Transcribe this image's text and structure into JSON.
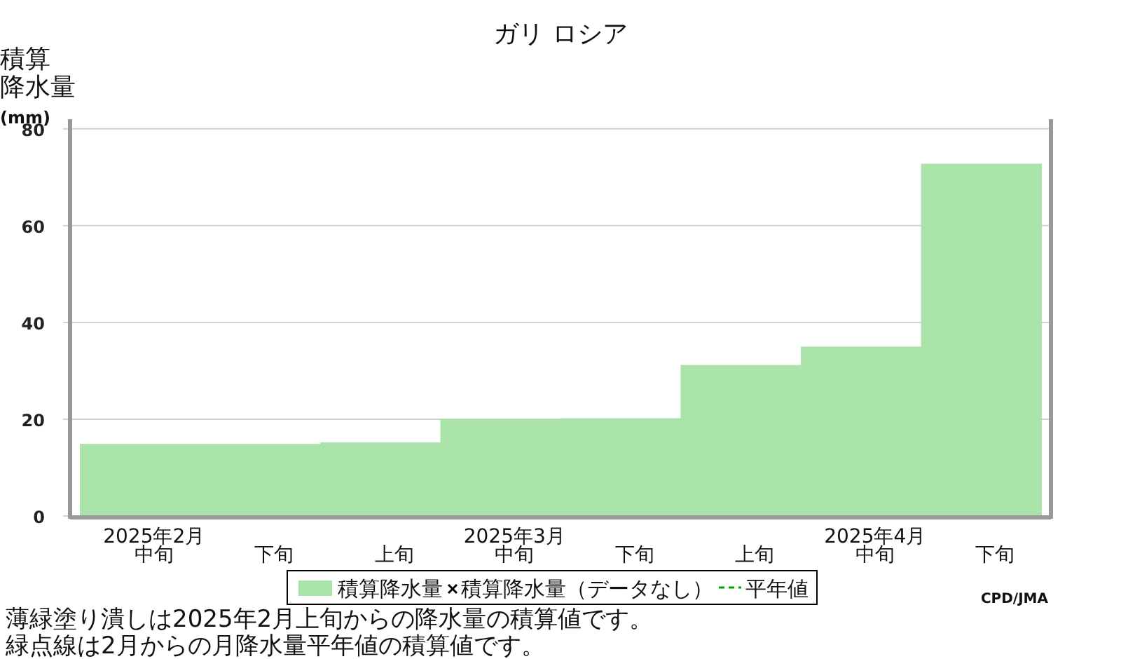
{
  "chart_data": {
    "type": "bar",
    "title": "ガリ ロシア",
    "ylabel": "積算降水量(mm)",
    "categories": [
      "2025年2月中旬",
      "下旬",
      "上旬",
      "2025年3月中旬",
      "下旬",
      "上旬",
      "2025年4月中旬",
      "下旬"
    ],
    "series": [
      {
        "name": "積算降水量",
        "color": "#aae4aa",
        "values": [
          14.9,
          14.9,
          15.2,
          20.1,
          20.2,
          31.2,
          35.0,
          72.8
        ]
      },
      {
        "name": "積算降水量（データなし）",
        "type": "scatter",
        "marker": "cross",
        "color": "#000000",
        "values": [
          null,
          null,
          null,
          null,
          null,
          null,
          null,
          null
        ]
      },
      {
        "name": "平年値",
        "type": "line",
        "line_style": "dashed",
        "color": "#00a000",
        "values": [
          null,
          null,
          null,
          null,
          null,
          null,
          null,
          null
        ]
      }
    ],
    "ylim": [
      0,
      82
    ],
    "yticks": [
      0,
      20,
      40,
      60,
      80
    ],
    "grid": "y",
    "legend": "bottom",
    "annotations": [
      "CPD/JMA",
      "薄緑塗り潰しは2025年2月上旬からの降水量の積算値です。",
      "緑点線は2月からの月降水量平年値の積算値です。"
    ]
  }
}
